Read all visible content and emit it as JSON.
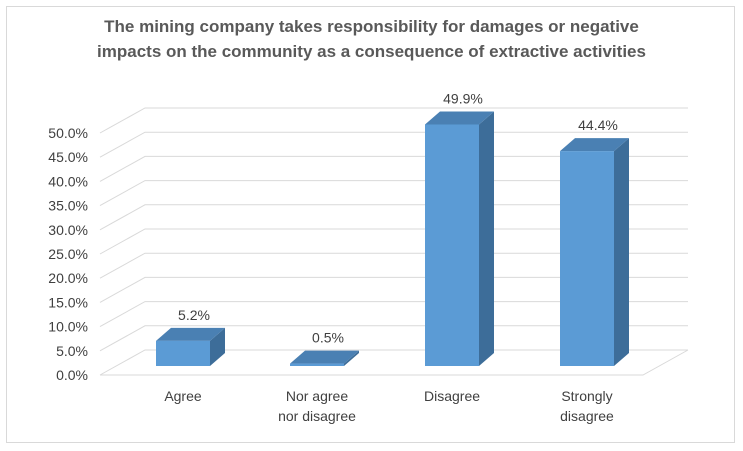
{
  "chart_data": {
    "type": "bar",
    "style": "3d-clustered-column",
    "title_lines": [
      "The mining company takes responsibility for damages or negative",
      "impacts on the community as a consequence of extractive activities"
    ],
    "categories": [
      [
        "Agree"
      ],
      [
        "Nor agree",
        "nor disagree"
      ],
      [
        "Disagree"
      ],
      [
        "Strongly",
        "disagree"
      ]
    ],
    "values": [
      5.2,
      0.5,
      49.9,
      44.4
    ],
    "data_labels": [
      "5.2%",
      "0.5%",
      "49.9%",
      "44.4%"
    ],
    "ylim": [
      0,
      50
    ],
    "y_ticks": [
      "0.0%",
      "5.0%",
      "10.0%",
      "15.0%",
      "20.0%",
      "25.0%",
      "30.0%",
      "35.0%",
      "40.0%",
      "45.0%",
      "50.0%"
    ],
    "grid": true,
    "legend": "none",
    "xlabel": "",
    "ylabel": "",
    "colors": {
      "bar_front": "#5b9bd5",
      "bar_top": "#4a80b3",
      "bar_side": "#3d6d99",
      "grid": "#d9d9d9",
      "text": "#404040",
      "title": "#595959"
    }
  }
}
